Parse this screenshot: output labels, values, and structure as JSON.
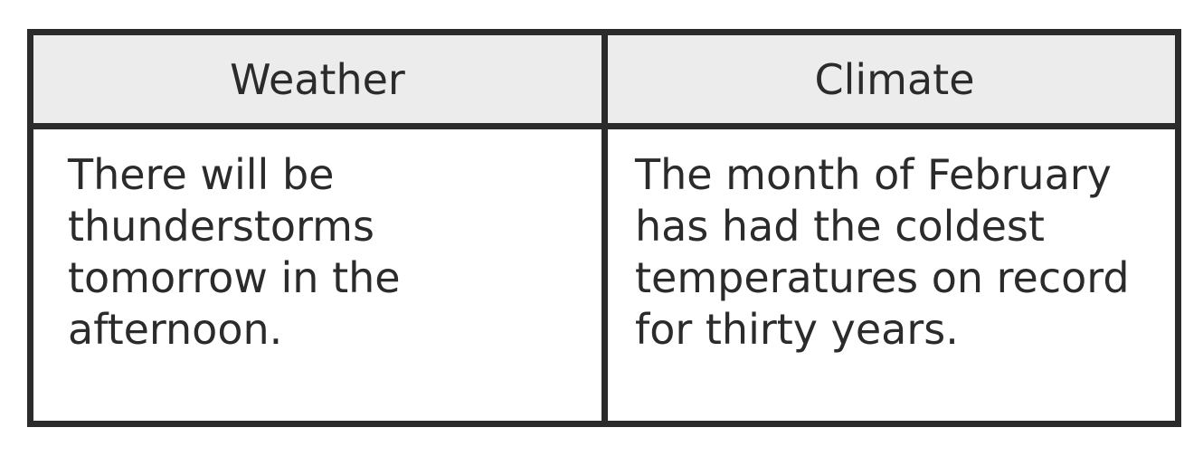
{
  "table": {
    "headers": [
      "Weather",
      "Climate"
    ],
    "rows": [
      {
        "weather": "There will be thunderstorms tomorrow in the afternoon.",
        "climate": "The month of February has had the coldest temperatures on record for thirty years."
      }
    ]
  },
  "colors": {
    "border": "#2b2b2b",
    "header_background": "#ececec",
    "text": "#2b2b2b"
  }
}
